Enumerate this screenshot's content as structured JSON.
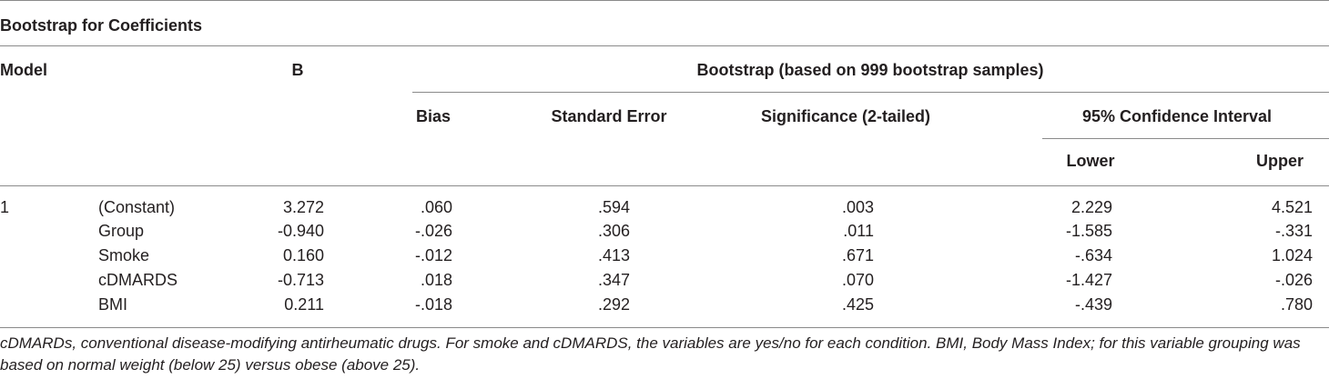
{
  "table": {
    "title": "Bootstrap for Coefficients",
    "headers": {
      "model": "Model",
      "b": "B",
      "bootstrap": "Bootstrap (based on 999 bootstrap samples)",
      "bias": "Bias",
      "std_error": "Standard Error",
      "significance": "Significance (2-tailed)",
      "ci": "95% Confidence Interval",
      "lower": "Lower",
      "upper": "Upper"
    },
    "model_number": "1",
    "rows": [
      {
        "name": "(Constant)",
        "b": "3.272",
        "bias": ".060",
        "se": ".594",
        "sig": ".003",
        "lower": "2.229",
        "upper": "4.521"
      },
      {
        "name": "Group",
        "b": "-0.940",
        "bias": "-.026",
        "se": ".306",
        "sig": ".011",
        "lower": "-1.585",
        "upper": "-.331"
      },
      {
        "name": "Smoke",
        "b": "0.160",
        "bias": "-.012",
        "se": ".413",
        "sig": ".671",
        "lower": "-.634",
        "upper": "1.024"
      },
      {
        "name": "cDMARDS",
        "b": "-0.713",
        "bias": ".018",
        "se": ".347",
        "sig": ".070",
        "lower": "-1.427",
        "upper": "-.026"
      },
      {
        "name": "BMI",
        "b": "0.211",
        "bias": "-.018",
        "se": ".292",
        "sig": ".425",
        "lower": "-.439",
        "upper": ".780"
      }
    ],
    "footnote": "cDMARDs, conventional disease-modifying antirheumatic drugs. For smoke and cDMARDS, the variables are yes/no for each condition. BMI, Body Mass Index; for this variable grouping was based on normal weight (below 25) versus obese (above 25)."
  }
}
